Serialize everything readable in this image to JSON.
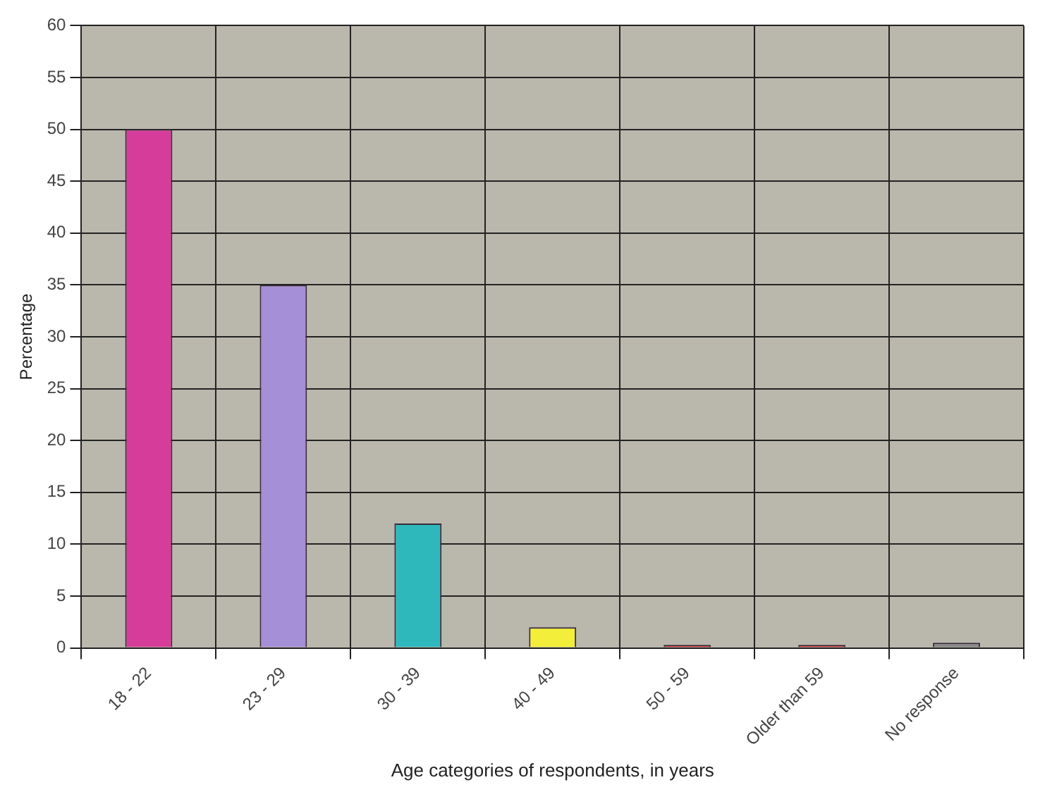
{
  "chart_data": {
    "type": "bar",
    "xlabel": "Age categories of respondents, in years",
    "ylabel": "Percentage",
    "categories": [
      "18 - 22",
      "23 - 29",
      "30 - 39",
      "40 - 49",
      "50 - 59",
      "Older than 59",
      "No response"
    ],
    "values": [
      50,
      35,
      12,
      2,
      0.3,
      0.3,
      0.5
    ],
    "colors": [
      "#d63d9a",
      "#a58fd6",
      "#2fb8bc",
      "#f2ee3a",
      "#d03a3a",
      "#d03a3a",
      "#888888"
    ],
    "ylim": [
      0,
      60
    ],
    "yticks": [
      0,
      5,
      10,
      15,
      20,
      25,
      30,
      35,
      40,
      45,
      50,
      55,
      60
    ],
    "grid": true,
    "legend": false
  }
}
